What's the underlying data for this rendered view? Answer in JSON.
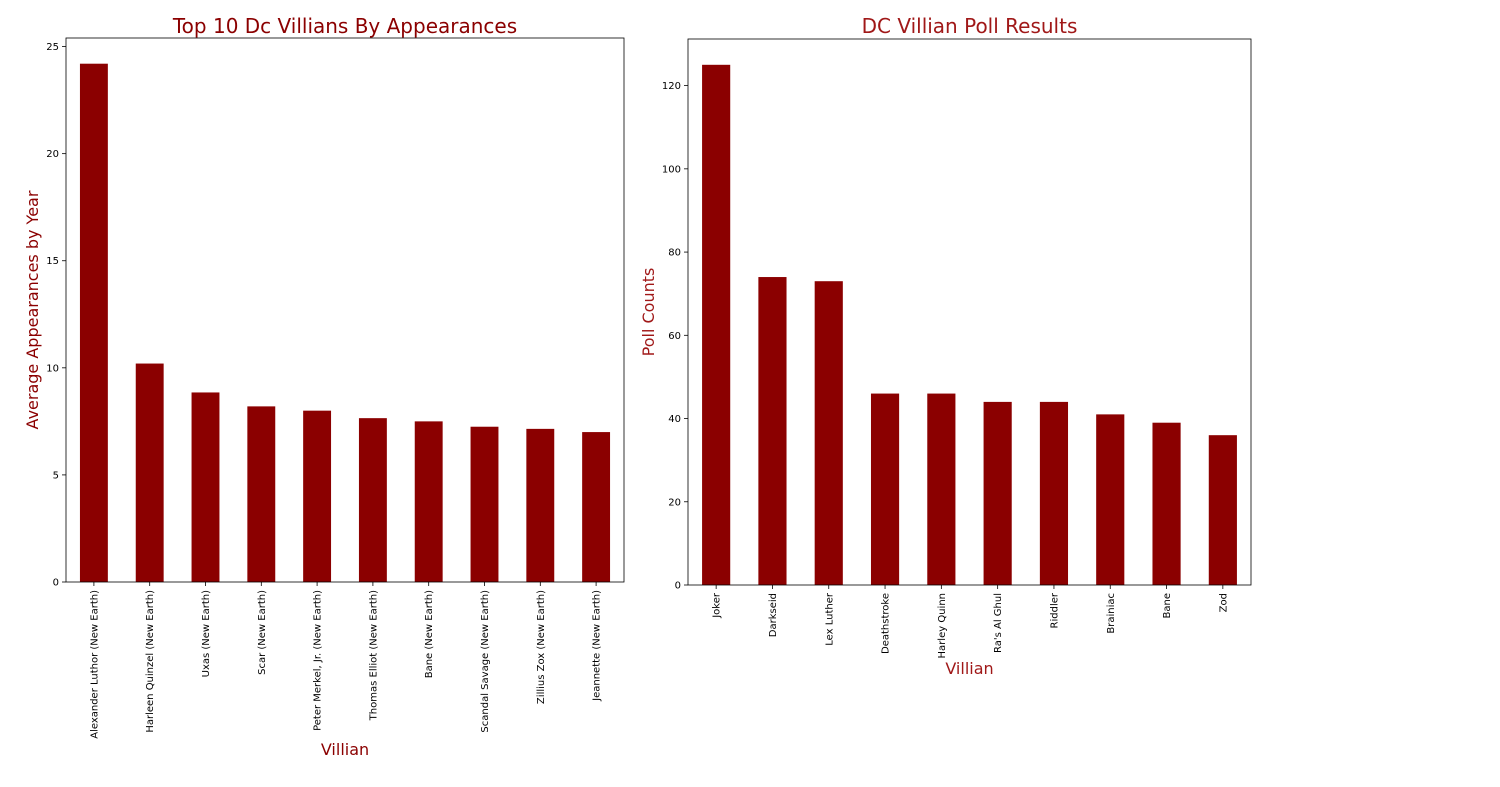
{
  "chart_data": [
    {
      "type": "bar",
      "title": "Top 10 Dc Villians By Appearances",
      "xlabel": "Villian",
      "ylabel": "Average Appearances by Year",
      "categories": [
        "Alexander Luthor (New Earth)",
        "Harleen Quinzel (New Earth)",
        "Uxas (New Earth)",
        "Scar (New Earth)",
        "Peter Merkel, Jr. (New Earth)",
        "Thomas Elliot (New Earth)",
        "Bane (New Earth)",
        "Scandal Savage (New Earth)",
        "Zillius Zox (New Earth)",
        "Jeannette (New Earth)"
      ],
      "values": [
        24.2,
        10.2,
        8.85,
        8.2,
        8.0,
        7.65,
        7.5,
        7.25,
        7.15,
        7.0
      ],
      "ylim": [
        0,
        25.4
      ],
      "yticks": [
        0,
        5,
        10,
        15,
        20,
        25
      ],
      "bar_color": "#8b0000",
      "title_color": "#8b0000",
      "label_color": "#8b0000",
      "grid": false
    },
    {
      "type": "bar",
      "title": "DC Villian Poll Results",
      "xlabel": "Villian",
      "ylabel": "Poll Counts",
      "categories": [
        "Joker",
        "Darkseid",
        "Lex Luther",
        "Deathstroke",
        "Harley Quinn",
        "Ra's Al Ghul",
        "Riddler",
        "Brainiac",
        "Bane",
        "Zod"
      ],
      "values": [
        125,
        74,
        73,
        46,
        46,
        44,
        44,
        41,
        39,
        36
      ],
      "ylim": [
        0,
        131.2
      ],
      "yticks": [
        0,
        20,
        40,
        60,
        80,
        100,
        120
      ],
      "bar_color": "#8b0000",
      "title_color": "#a01818",
      "label_color": "#a01818",
      "grid": false
    }
  ]
}
